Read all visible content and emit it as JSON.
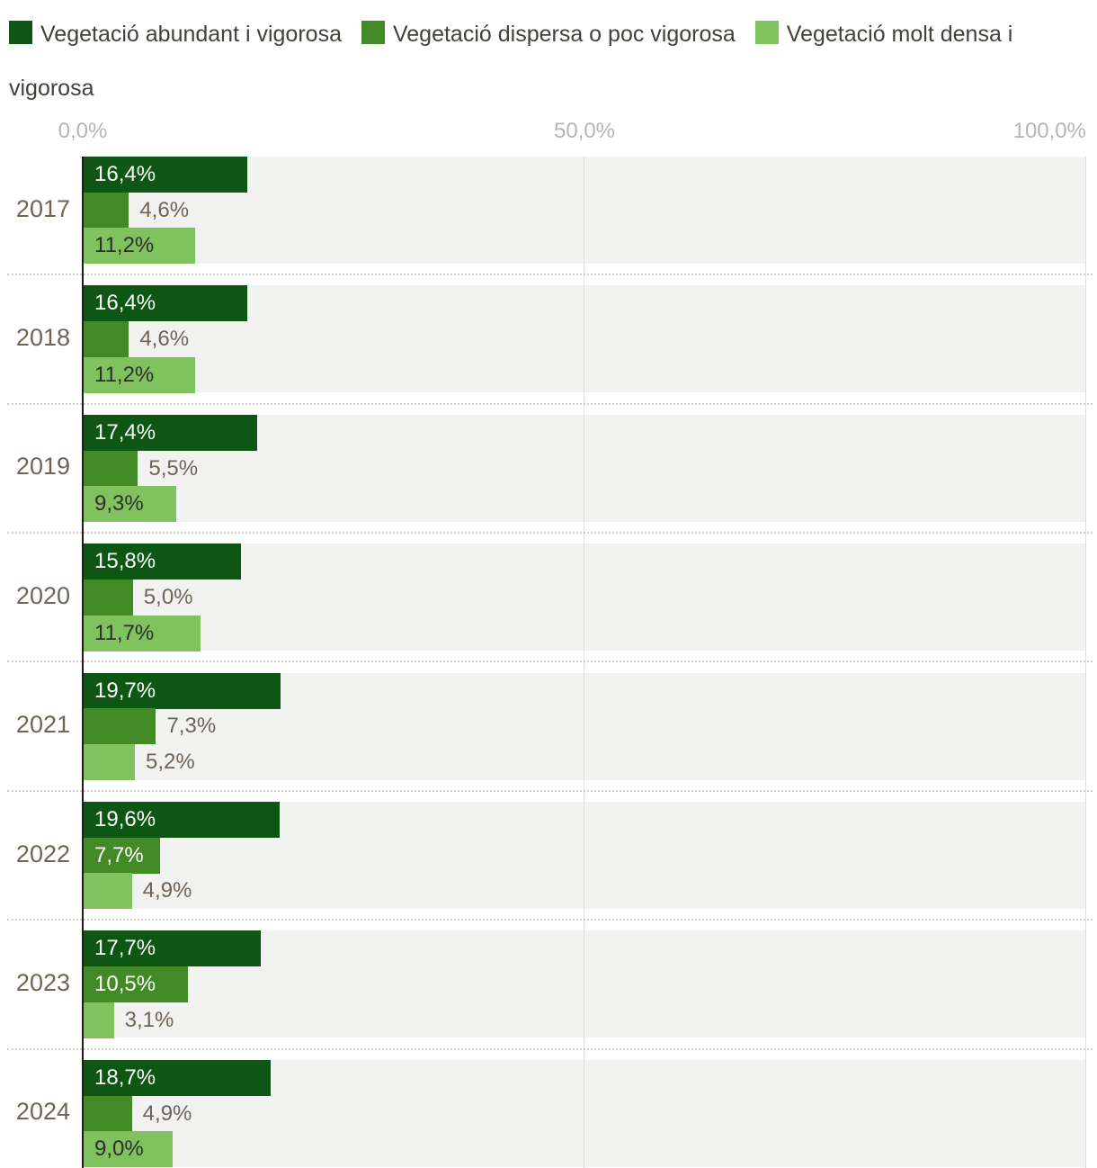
{
  "legend": {
    "items": [
      {
        "label": "Vegetació abundant i vigorosa",
        "color": "#0e5613"
      },
      {
        "label": "Vegetació dispersa o poc vigorosa",
        "color": "#418a26"
      },
      {
        "label": "Vegetació molt densa i vigorosa",
        "color": "#80c25e"
      }
    ]
  },
  "axis": {
    "ticks": [
      {
        "label": "0,0%",
        "value": 0
      },
      {
        "label": "50,0%",
        "value": 50
      },
      {
        "label": "100,0%",
        "value": 100
      }
    ]
  },
  "chart_data": {
    "type": "bar",
    "orientation": "horizontal",
    "grouped": true,
    "categories": [
      "2017",
      "2018",
      "2019",
      "2020",
      "2021",
      "2022",
      "2023",
      "2024"
    ],
    "series": [
      {
        "name": "Vegetació abundant i vigorosa",
        "color": "#0e5613",
        "values": [
          16.4,
          16.4,
          17.4,
          15.8,
          19.7,
          19.6,
          17.7,
          18.7
        ],
        "labels": [
          "16,4%",
          "16,4%",
          "17,4%",
          "15,8%",
          "19,7%",
          "19,6%",
          "17,7%",
          "18,7%"
        ]
      },
      {
        "name": "Vegetació dispersa o poc vigorosa",
        "color": "#418a26",
        "values": [
          4.6,
          4.6,
          5.5,
          5.0,
          7.3,
          7.7,
          10.5,
          4.9
        ],
        "labels": [
          "4,6%",
          "4,6%",
          "5,5%",
          "5,0%",
          "7,3%",
          "7,7%",
          "10,5%",
          "4,9%"
        ]
      },
      {
        "name": "Vegetació molt densa i vigorosa",
        "color": "#80c25e",
        "values": [
          11.2,
          11.2,
          9.3,
          11.7,
          5.2,
          4.9,
          3.1,
          9.0
        ],
        "labels": [
          "11,2%",
          "11,2%",
          "9,3%",
          "11,7%",
          "5,2%",
          "4,9%",
          "3,1%",
          "9,0%"
        ]
      }
    ],
    "xlim": [
      0,
      100
    ],
    "value_suffix": "%",
    "decimal_separator": ",",
    "legend_position": "top",
    "grid": "vertical"
  },
  "colors": {
    "plot_row_background": "#f2f2f0",
    "gridline": "#dedede",
    "axis_line": "#1d1d1b",
    "tick_label": "#b5b5b5",
    "year_label": "#6e6557",
    "label_outside": "#6f6557",
    "label_inside_dark_bar": "#ffffff",
    "label_inside_light_bar": "#2e2e2e",
    "separator": "#cfcfcc",
    "legend_text": "#42413c"
  }
}
